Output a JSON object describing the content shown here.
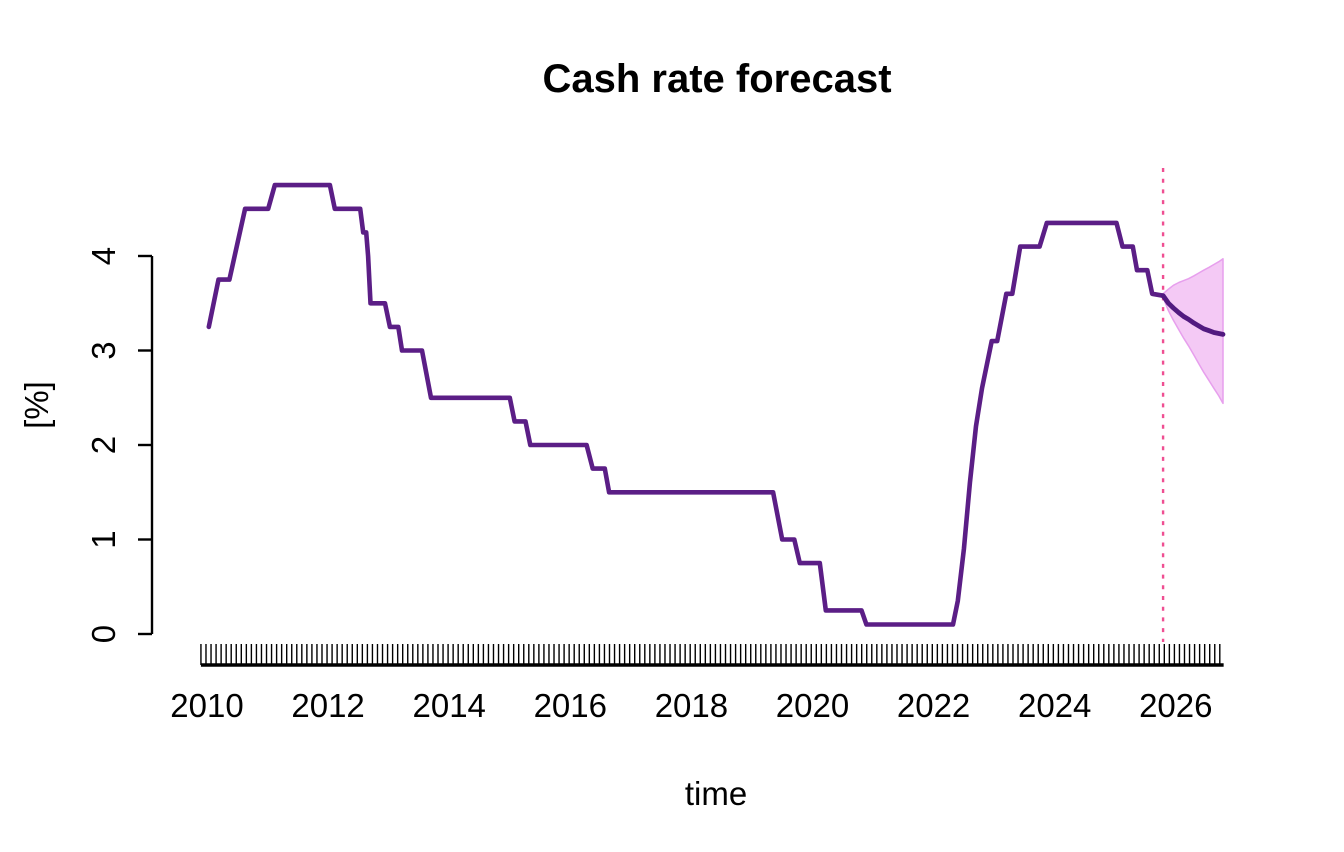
{
  "chart_data": {
    "type": "line",
    "title": "Cash rate forecast",
    "xlabel": "time",
    "ylabel": "[%]",
    "x_ticks": [
      2010,
      2012,
      2014,
      2016,
      2018,
      2020,
      2022,
      2024,
      2026
    ],
    "y_ticks": [
      0,
      1,
      2,
      3,
      4
    ],
    "xlim": [
      2009.9,
      2026.79
    ],
    "ylim": [
      0,
      4
    ],
    "x_minor_tick_interval_years": 0.0833,
    "grid": "off",
    "legend": "none",
    "colors": {
      "history_line": "#5b1e86",
      "forecast_line": "#521a80",
      "band_fill": "#f4c9f5",
      "band_edge": "#e79fed",
      "vline": "#ef4f92",
      "axis": "#000000"
    },
    "vline": {
      "x": 2025.79,
      "style": "dotted",
      "label": "forecast start"
    },
    "series": [
      {
        "name": "historical cash rate",
        "role": "history",
        "points": [
          [
            2010.03,
            3.25
          ],
          [
            2010.19,
            3.75
          ],
          [
            2010.37,
            3.75
          ],
          [
            2010.63,
            4.5
          ],
          [
            2011.01,
            4.5
          ],
          [
            2011.12,
            4.75
          ],
          [
            2012.03,
            4.75
          ],
          [
            2012.11,
            4.5
          ],
          [
            2012.53,
            4.5
          ],
          [
            2012.58,
            4.25
          ],
          [
            2012.63,
            4.25
          ],
          [
            2012.66,
            4.0
          ],
          [
            2012.7,
            3.5
          ],
          [
            2012.94,
            3.5
          ],
          [
            2013.02,
            3.25
          ],
          [
            2013.16,
            3.25
          ],
          [
            2013.22,
            3.0
          ],
          [
            2013.55,
            3.0
          ],
          [
            2013.7,
            2.5
          ],
          [
            2015.0,
            2.5
          ],
          [
            2015.08,
            2.25
          ],
          [
            2015.26,
            2.25
          ],
          [
            2015.34,
            2.0
          ],
          [
            2016.27,
            2.0
          ],
          [
            2016.37,
            1.75
          ],
          [
            2016.57,
            1.75
          ],
          [
            2016.64,
            1.5
          ],
          [
            2019.35,
            1.5
          ],
          [
            2019.5,
            1.0
          ],
          [
            2019.7,
            1.0
          ],
          [
            2019.79,
            0.75
          ],
          [
            2020.12,
            0.75
          ],
          [
            2020.22,
            0.25
          ],
          [
            2020.81,
            0.25
          ],
          [
            2020.89,
            0.1
          ],
          [
            2022.32,
            0.1
          ],
          [
            2022.4,
            0.35
          ],
          [
            2022.5,
            0.9
          ],
          [
            2022.6,
            1.6
          ],
          [
            2022.7,
            2.2
          ],
          [
            2022.8,
            2.6
          ],
          [
            2022.96,
            3.1
          ],
          [
            2023.05,
            3.1
          ],
          [
            2023.2,
            3.6
          ],
          [
            2023.3,
            3.6
          ],
          [
            2023.43,
            4.1
          ],
          [
            2023.75,
            4.1
          ],
          [
            2023.87,
            4.35
          ],
          [
            2025.02,
            4.35
          ],
          [
            2025.12,
            4.1
          ],
          [
            2025.29,
            4.1
          ],
          [
            2025.36,
            3.85
          ],
          [
            2025.53,
            3.85
          ],
          [
            2025.61,
            3.6
          ],
          [
            2025.79,
            3.58
          ]
        ]
      },
      {
        "name": "forecast median",
        "role": "forecast",
        "points": [
          [
            2025.79,
            3.58
          ],
          [
            2025.88,
            3.5
          ],
          [
            2025.96,
            3.45
          ],
          [
            2026.05,
            3.4
          ],
          [
            2026.13,
            3.36
          ],
          [
            2026.21,
            3.33
          ],
          [
            2026.3,
            3.29
          ],
          [
            2026.38,
            3.26
          ],
          [
            2026.46,
            3.23
          ],
          [
            2026.55,
            3.21
          ],
          [
            2026.63,
            3.19
          ],
          [
            2026.71,
            3.18
          ],
          [
            2026.78,
            3.17
          ]
        ]
      }
    ],
    "band": {
      "name": "forecast interval",
      "upper": [
        [
          2025.79,
          3.6
        ],
        [
          2025.88,
          3.65
        ],
        [
          2025.96,
          3.69
        ],
        [
          2026.05,
          3.72
        ],
        [
          2026.13,
          3.74
        ],
        [
          2026.21,
          3.76
        ],
        [
          2026.3,
          3.79
        ],
        [
          2026.38,
          3.82
        ],
        [
          2026.46,
          3.85
        ],
        [
          2026.55,
          3.88
        ],
        [
          2026.63,
          3.91
        ],
        [
          2026.71,
          3.94
        ],
        [
          2026.78,
          3.97
        ]
      ],
      "lower": [
        [
          2025.79,
          3.56
        ],
        [
          2025.88,
          3.42
        ],
        [
          2025.96,
          3.32
        ],
        [
          2026.05,
          3.22
        ],
        [
          2026.13,
          3.13
        ],
        [
          2026.21,
          3.05
        ],
        [
          2026.3,
          2.95
        ],
        [
          2026.38,
          2.86
        ],
        [
          2026.46,
          2.77
        ],
        [
          2026.55,
          2.68
        ],
        [
          2026.63,
          2.6
        ],
        [
          2026.71,
          2.52
        ],
        [
          2026.78,
          2.44
        ]
      ]
    }
  }
}
